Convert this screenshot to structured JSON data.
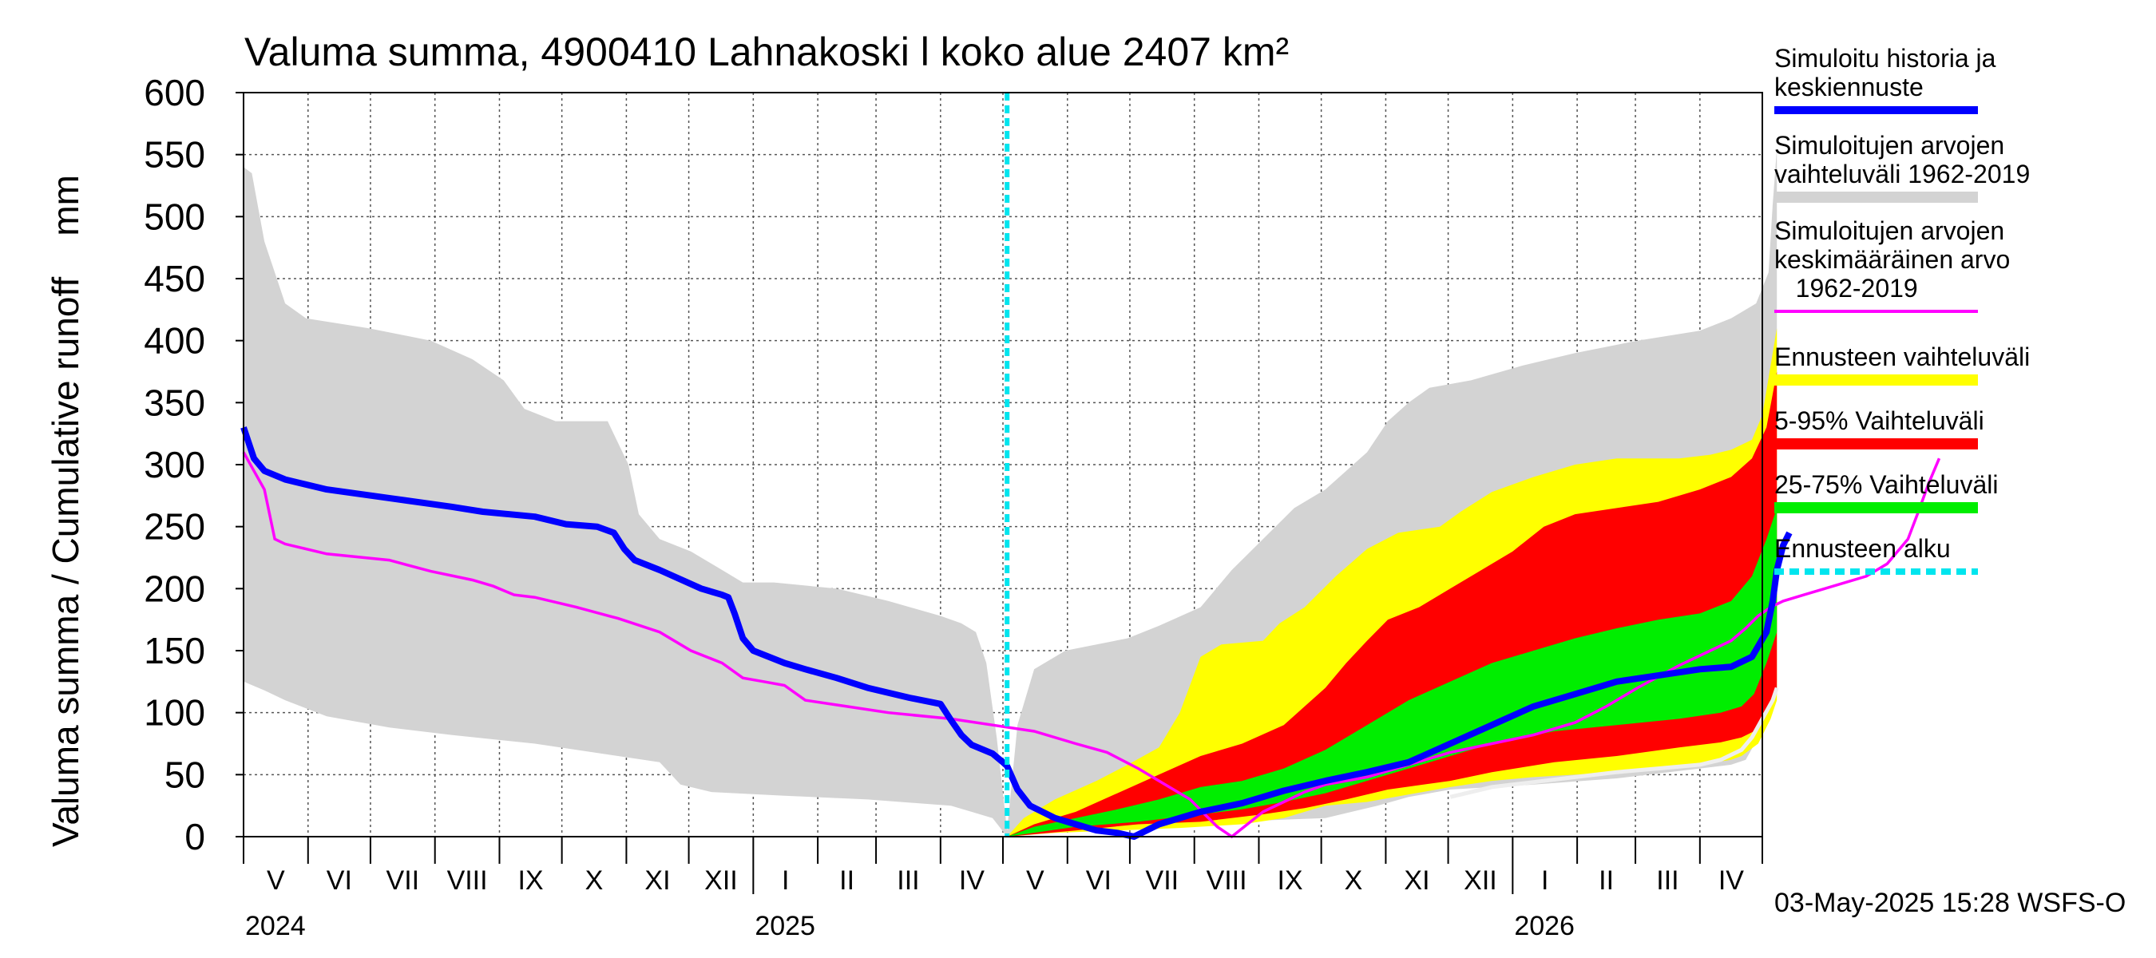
{
  "chart_data": {
    "type": "area",
    "title": "Valuma summa, 4900410 Lahnakoski l koko alue 2407 km²",
    "ylabel": "Valuma summa / Cumulative runoff    mm",
    "ylim": [
      0,
      600
    ],
    "y_ticks": [
      0,
      50,
      100,
      150,
      200,
      250,
      300,
      350,
      400,
      450,
      500,
      550,
      600
    ],
    "month_labels": [
      "V",
      "VI",
      "VII",
      "VIII",
      "IX",
      "X",
      "XI",
      "XII",
      "I",
      "II",
      "III",
      "IV",
      "V",
      "VI",
      "VII",
      "VIII",
      "IX",
      "X",
      "XI",
      "XII",
      "I",
      "II",
      "III",
      "IV"
    ],
    "year_labels": [
      "2024",
      "2025",
      "2026"
    ],
    "x_unit": "days since 2024-05-01",
    "forecast_start_day": 367,
    "timestamp": "03-May-2025 15:28 WSFS-O",
    "legend": [
      {
        "key": "history",
        "label_lines": [
          "Simuloitu historia ja",
          "keskiennuste"
        ],
        "color": "#0000ff",
        "style": "solid"
      },
      {
        "key": "range",
        "label_lines": [
          "Simuloitujen arvojen",
          "vaihteluväli 1962-2019"
        ],
        "color": "#d3d3d3",
        "style": "solid"
      },
      {
        "key": "mean",
        "label_lines": [
          "Simuloitujen arvojen",
          "keskimääräinen arvo",
          "   1962-2019"
        ],
        "color": "#ff00ff",
        "style": "solid"
      },
      {
        "key": "forecast_range",
        "label_lines": [
          "Ennusteen vaihteluväli"
        ],
        "color": "#ffff00",
        "style": "solid"
      },
      {
        "key": "p5_95",
        "label_lines": [
          "5-95% Vaihteluväli"
        ],
        "color": "#ff0000",
        "style": "solid"
      },
      {
        "key": "p25_75",
        "label_lines": [
          "25-75% Vaihteluväli"
        ],
        "color": "#00ee00",
        "style": "solid"
      },
      {
        "key": "forecast_start",
        "label_lines": [
          "Ennusteen alku"
        ],
        "color": "#00e5ee",
        "style": "dashed"
      }
    ],
    "series": {
      "grey_upper": [
        [
          0,
          540
        ],
        [
          4,
          535
        ],
        [
          10,
          480
        ],
        [
          20,
          430
        ],
        [
          30,
          418
        ],
        [
          60,
          410
        ],
        [
          90,
          400
        ],
        [
          110,
          385
        ],
        [
          125,
          368
        ],
        [
          135,
          345
        ],
        [
          150,
          335
        ],
        [
          175,
          335
        ],
        [
          185,
          300
        ],
        [
          190,
          260
        ],
        [
          200,
          240
        ],
        [
          215,
          230
        ],
        [
          230,
          215
        ],
        [
          240,
          205
        ],
        [
          255,
          205
        ],
        [
          285,
          200
        ],
        [
          310,
          190
        ],
        [
          335,
          178
        ],
        [
          345,
          172
        ],
        [
          352,
          165
        ],
        [
          357,
          140
        ],
        [
          362,
          80
        ],
        [
          367,
          5
        ],
        [
          372,
          90
        ],
        [
          380,
          135
        ],
        [
          395,
          150
        ],
        [
          425,
          160
        ],
        [
          440,
          170
        ],
        [
          460,
          185
        ],
        [
          475,
          215
        ],
        [
          490,
          240
        ],
        [
          505,
          265
        ],
        [
          520,
          280
        ],
        [
          540,
          310
        ],
        [
          550,
          335
        ],
        [
          560,
          350
        ],
        [
          570,
          362
        ],
        [
          590,
          368
        ],
        [
          615,
          380
        ],
        [
          640,
          390
        ],
        [
          670,
          400
        ],
        [
          700,
          408
        ],
        [
          715,
          418
        ],
        [
          727,
          430
        ],
        [
          733,
          455
        ],
        [
          735,
          510
        ],
        [
          737,
          555
        ]
      ],
      "grey_lower": [
        [
          0,
          125
        ],
        [
          10,
          118
        ],
        [
          20,
          110
        ],
        [
          40,
          97
        ],
        [
          70,
          88
        ],
        [
          100,
          82
        ],
        [
          140,
          75
        ],
        [
          180,
          65
        ],
        [
          200,
          60
        ],
        [
          210,
          42
        ],
        [
          225,
          36
        ],
        [
          260,
          33
        ],
        [
          300,
          30
        ],
        [
          340,
          25
        ],
        [
          360,
          15
        ],
        [
          367,
          0
        ],
        [
          380,
          3
        ],
        [
          420,
          7
        ],
        [
          460,
          10
        ],
        [
          490,
          13
        ],
        [
          520,
          15
        ],
        [
          545,
          25
        ],
        [
          560,
          32
        ],
        [
          580,
          38
        ],
        [
          620,
          42
        ],
        [
          660,
          47
        ],
        [
          700,
          55
        ],
        [
          715,
          58
        ],
        [
          722,
          62
        ],
        [
          728,
          80
        ],
        [
          735,
          100
        ],
        [
          737,
          125
        ]
      ],
      "yellow_upper": [
        [
          367,
          0
        ],
        [
          375,
          15
        ],
        [
          390,
          30
        ],
        [
          410,
          45
        ],
        [
          425,
          58
        ],
        [
          440,
          72
        ],
        [
          450,
          100
        ],
        [
          460,
          145
        ],
        [
          470,
          155
        ],
        [
          490,
          158
        ],
        [
          498,
          172
        ],
        [
          510,
          185
        ],
        [
          525,
          210
        ],
        [
          540,
          232
        ],
        [
          555,
          245
        ],
        [
          575,
          250
        ],
        [
          585,
          262
        ],
        [
          600,
          278
        ],
        [
          620,
          290
        ],
        [
          640,
          300
        ],
        [
          660,
          305
        ],
        [
          690,
          305
        ],
        [
          705,
          308
        ],
        [
          715,
          312
        ],
        [
          725,
          320
        ],
        [
          730,
          340
        ],
        [
          734,
          380
        ],
        [
          737,
          410
        ]
      ],
      "yellow_lower": [
        [
          367,
          0
        ],
        [
          390,
          3
        ],
        [
          420,
          5
        ],
        [
          450,
          7
        ],
        [
          480,
          10
        ],
        [
          500,
          15
        ],
        [
          520,
          25
        ],
        [
          540,
          28
        ],
        [
          580,
          40
        ],
        [
          600,
          45
        ],
        [
          620,
          48
        ],
        [
          660,
          52
        ],
        [
          700,
          58
        ],
        [
          715,
          62
        ],
        [
          720,
          65
        ],
        [
          728,
          75
        ],
        [
          734,
          95
        ],
        [
          737,
          110
        ]
      ],
      "red_upper": [
        [
          367,
          0
        ],
        [
          380,
          10
        ],
        [
          400,
          20
        ],
        [
          420,
          35
        ],
        [
          440,
          50
        ],
        [
          460,
          65
        ],
        [
          480,
          75
        ],
        [
          500,
          90
        ],
        [
          510,
          105
        ],
        [
          520,
          120
        ],
        [
          530,
          140
        ],
        [
          540,
          158
        ],
        [
          550,
          175
        ],
        [
          565,
          185
        ],
        [
          580,
          200
        ],
        [
          595,
          215
        ],
        [
          610,
          230
        ],
        [
          625,
          250
        ],
        [
          640,
          260
        ],
        [
          660,
          265
        ],
        [
          680,
          270
        ],
        [
          700,
          280
        ],
        [
          715,
          290
        ],
        [
          725,
          305
        ],
        [
          732,
          330
        ],
        [
          737,
          375
        ]
      ],
      "red_lower": [
        [
          367,
          0
        ],
        [
          400,
          5
        ],
        [
          430,
          10
        ],
        [
          460,
          12
        ],
        [
          490,
          18
        ],
        [
          510,
          23
        ],
        [
          530,
          30
        ],
        [
          550,
          38
        ],
        [
          580,
          45
        ],
        [
          600,
          52
        ],
        [
          630,
          60
        ],
        [
          660,
          65
        ],
        [
          690,
          72
        ],
        [
          710,
          76
        ],
        [
          720,
          80
        ],
        [
          726,
          85
        ],
        [
          732,
          100
        ],
        [
          737,
          115
        ]
      ],
      "green_upper": [
        [
          367,
          0
        ],
        [
          380,
          8
        ],
        [
          400,
          15
        ],
        [
          420,
          22
        ],
        [
          440,
          30
        ],
        [
          460,
          40
        ],
        [
          480,
          45
        ],
        [
          500,
          55
        ],
        [
          520,
          70
        ],
        [
          540,
          90
        ],
        [
          560,
          110
        ],
        [
          580,
          125
        ],
        [
          600,
          140
        ],
        [
          620,
          150
        ],
        [
          640,
          160
        ],
        [
          660,
          168
        ],
        [
          680,
          175
        ],
        [
          700,
          180
        ],
        [
          715,
          190
        ],
        [
          725,
          210
        ],
        [
          732,
          240
        ],
        [
          737,
          265
        ]
      ],
      "green_lower": [
        [
          367,
          0
        ],
        [
          400,
          8
        ],
        [
          430,
          12
        ],
        [
          460,
          18
        ],
        [
          480,
          22
        ],
        [
          500,
          28
        ],
        [
          520,
          35
        ],
        [
          540,
          45
        ],
        [
          560,
          55
        ],
        [
          580,
          65
        ],
        [
          600,
          75
        ],
        [
          630,
          85
        ],
        [
          660,
          90
        ],
        [
          690,
          95
        ],
        [
          710,
          100
        ],
        [
          720,
          105
        ],
        [
          726,
          115
        ],
        [
          732,
          140
        ],
        [
          737,
          165
        ]
      ],
      "history": [
        [
          0,
          330
        ],
        [
          5,
          305
        ],
        [
          10,
          295
        ],
        [
          20,
          288
        ],
        [
          40,
          280
        ],
        [
          70,
          273
        ],
        [
          100,
          266
        ],
        [
          115,
          262
        ],
        [
          140,
          258
        ],
        [
          155,
          252
        ],
        [
          170,
          250
        ],
        [
          178,
          245
        ],
        [
          183,
          232
        ],
        [
          188,
          223
        ],
        [
          200,
          215
        ],
        [
          220,
          200
        ],
        [
          230,
          195
        ],
        [
          233,
          193
        ],
        [
          236,
          180
        ],
        [
          240,
          160
        ],
        [
          245,
          150
        ],
        [
          260,
          140
        ],
        [
          270,
          135
        ],
        [
          285,
          128
        ],
        [
          300,
          120
        ],
        [
          320,
          112
        ],
        [
          335,
          107
        ],
        [
          340,
          94
        ],
        [
          345,
          82
        ],
        [
          350,
          74
        ],
        [
          360,
          67
        ],
        [
          365,
          60
        ],
        [
          367,
          57
        ],
        [
          372,
          38
        ],
        [
          378,
          25
        ],
        [
          390,
          15
        ],
        [
          400,
          10
        ],
        [
          410,
          5
        ],
        [
          420,
          3
        ],
        [
          428,
          0
        ],
        [
          440,
          10
        ],
        [
          460,
          20
        ],
        [
          480,
          27
        ],
        [
          500,
          37
        ],
        [
          520,
          45
        ],
        [
          540,
          52
        ],
        [
          560,
          60
        ],
        [
          580,
          75
        ],
        [
          600,
          90
        ],
        [
          620,
          105
        ],
        [
          640,
          115
        ],
        [
          660,
          125
        ],
        [
          680,
          130
        ],
        [
          700,
          135
        ],
        [
          715,
          137
        ],
        [
          725,
          145
        ],
        [
          732,
          165
        ],
        [
          735,
          190
        ],
        [
          737,
          215
        ],
        [
          740,
          235
        ],
        [
          743,
          245
        ]
      ],
      "mean": [
        [
          0,
          310
        ],
        [
          5,
          295
        ],
        [
          10,
          280
        ],
        [
          15,
          240
        ],
        [
          20,
          236
        ],
        [
          40,
          228
        ],
        [
          70,
          223
        ],
        [
          90,
          214
        ],
        [
          110,
          207
        ],
        [
          120,
          202
        ],
        [
          130,
          195
        ],
        [
          140,
          193
        ],
        [
          160,
          185
        ],
        [
          180,
          176
        ],
        [
          200,
          165
        ],
        [
          215,
          150
        ],
        [
          230,
          140
        ],
        [
          240,
          128
        ],
        [
          250,
          125
        ],
        [
          260,
          122
        ],
        [
          270,
          110
        ],
        [
          290,
          105
        ],
        [
          310,
          100
        ],
        [
          340,
          95
        ],
        [
          360,
          90
        ],
        [
          380,
          85
        ],
        [
          400,
          75
        ],
        [
          415,
          68
        ],
        [
          430,
          55
        ],
        [
          445,
          40
        ],
        [
          455,
          30
        ],
        [
          462,
          18
        ],
        [
          468,
          8
        ],
        [
          475,
          0
        ],
        [
          490,
          20
        ],
        [
          500,
          28
        ],
        [
          510,
          36
        ],
        [
          520,
          42
        ],
        [
          540,
          48
        ],
        [
          560,
          58
        ],
        [
          580,
          68
        ],
        [
          600,
          75
        ],
        [
          620,
          82
        ],
        [
          640,
          92
        ],
        [
          655,
          105
        ],
        [
          670,
          120
        ],
        [
          690,
          138
        ],
        [
          705,
          150
        ],
        [
          715,
          158
        ],
        [
          722,
          168
        ],
        [
          728,
          178
        ],
        [
          734,
          185
        ],
        [
          740,
          190
        ],
        [
          750,
          195
        ],
        [
          760,
          200
        ],
        [
          770,
          205
        ],
        [
          780,
          210
        ],
        [
          790,
          220
        ],
        [
          800,
          240
        ],
        [
          805,
          262
        ],
        [
          810,
          285
        ],
        [
          815,
          305
        ]
      ],
      "white_lower_trace": [
        [
          580,
          32
        ],
        [
          600,
          40
        ],
        [
          620,
          44
        ],
        [
          640,
          48
        ],
        [
          660,
          52
        ],
        [
          680,
          55
        ],
        [
          700,
          58
        ],
        [
          710,
          62
        ],
        [
          720,
          70
        ],
        [
          725,
          80
        ],
        [
          730,
          95
        ],
        [
          735,
          110
        ],
        [
          737,
          120
        ]
      ]
    }
  }
}
